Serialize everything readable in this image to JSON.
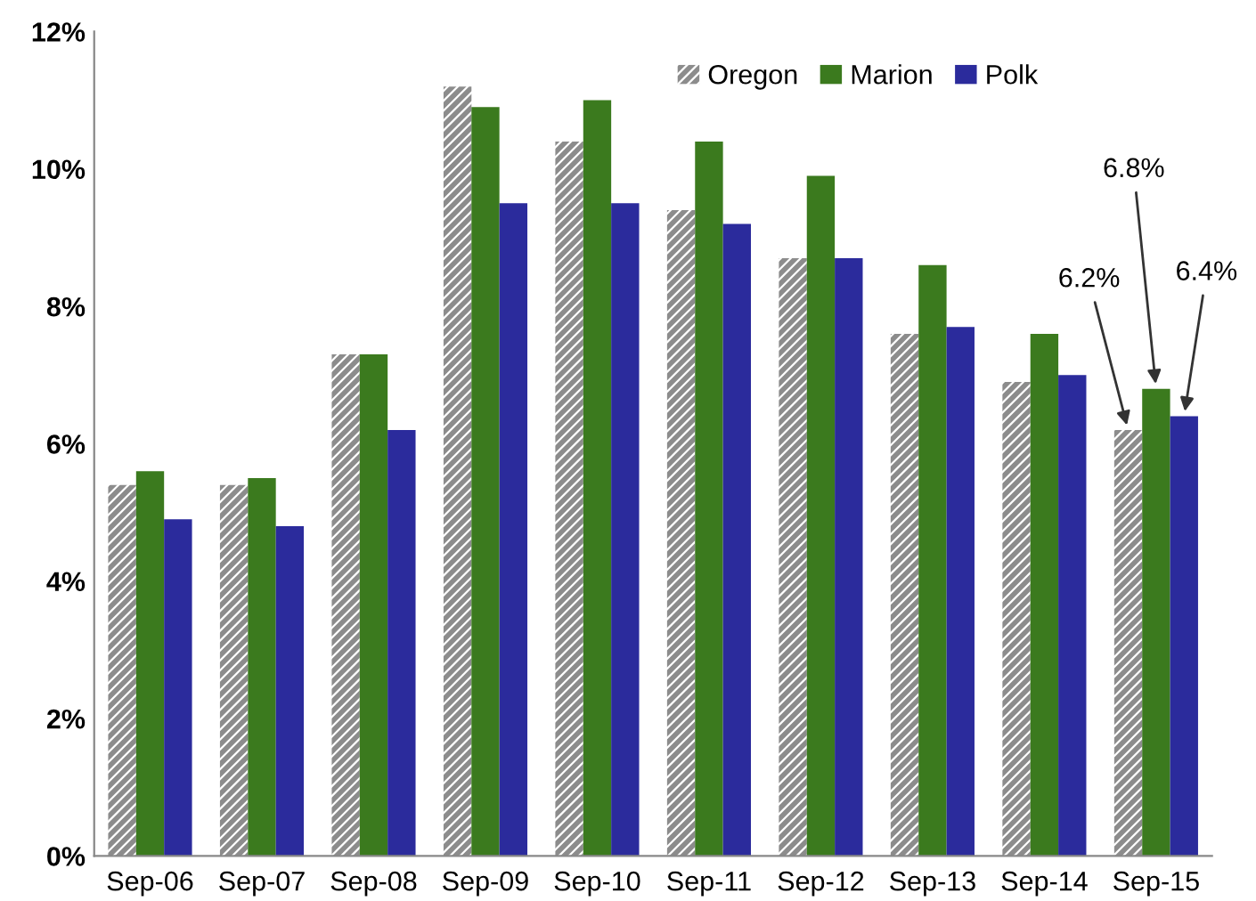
{
  "chart_data": {
    "type": "bar",
    "categories": [
      "Sep-06",
      "Sep-07",
      "Sep-08",
      "Sep-09",
      "Sep-10",
      "Sep-11",
      "Sep-12",
      "Sep-13",
      "Sep-14",
      "Sep-15"
    ],
    "series": [
      {
        "name": "Oregon",
        "color": "#8c8c8c",
        "values": [
          5.4,
          5.4,
          7.3,
          11.2,
          10.4,
          9.4,
          8.7,
          7.6,
          6.9,
          6.2
        ]
      },
      {
        "name": "Marion",
        "color": "#3b7a1e",
        "values": [
          5.6,
          5.5,
          7.3,
          10.9,
          11.0,
          10.4,
          9.9,
          8.6,
          7.6,
          6.8
        ]
      },
      {
        "name": "Polk",
        "color": "#2b2b9c",
        "values": [
          4.9,
          4.8,
          6.2,
          9.5,
          9.5,
          9.2,
          8.7,
          7.7,
          7.0,
          6.4
        ]
      }
    ],
    "ylim": [
      0,
      12
    ],
    "yticks": [
      {
        "value": 0,
        "label": "0%"
      },
      {
        "value": 2,
        "label": "2%"
      },
      {
        "value": 4,
        "label": "4%"
      },
      {
        "value": 6,
        "label": "6%"
      },
      {
        "value": 8,
        "label": "8%"
      },
      {
        "value": 10,
        "label": "10%"
      },
      {
        "value": 12,
        "label": "12%"
      }
    ],
    "annotations": [
      "6.2%",
      "6.8%",
      "6.4%"
    ],
    "grid": false,
    "legend": "top right"
  }
}
